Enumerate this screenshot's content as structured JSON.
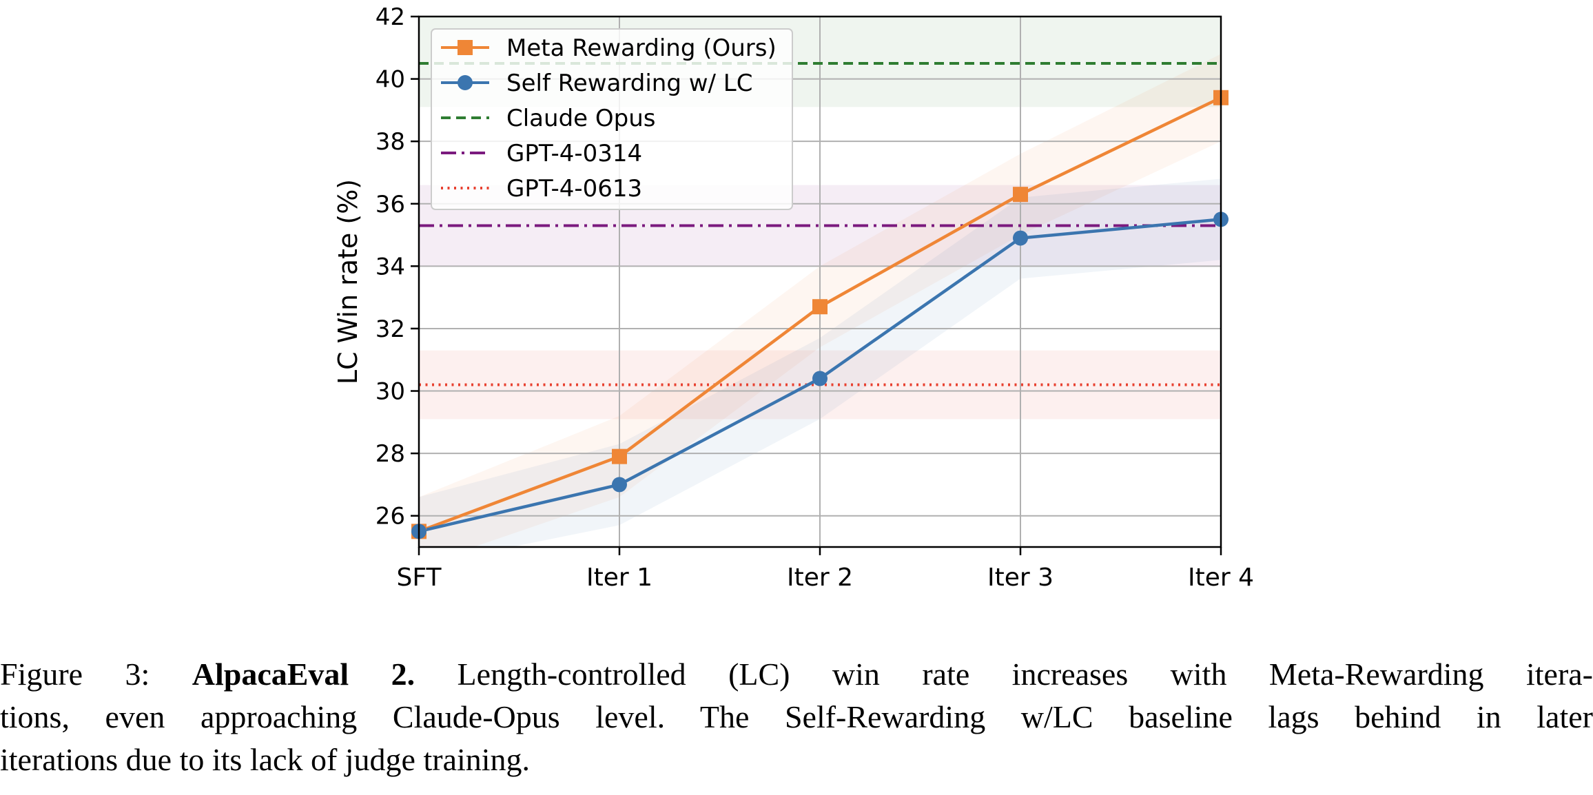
{
  "chart_data": {
    "type": "line",
    "categories": [
      "SFT",
      "Iter 1",
      "Iter 2",
      "Iter 3",
      "Iter 4"
    ],
    "ylabel": "LC Win rate (%)",
    "xlabel": "",
    "ylim": [
      25,
      42
    ],
    "yticks": [
      26,
      28,
      30,
      32,
      34,
      36,
      38,
      40,
      42
    ],
    "grid": true,
    "legend_position": "top-left",
    "series": [
      {
        "name": "Meta Rewarding (Ours)",
        "values": [
          25.5,
          27.9,
          32.7,
          36.3,
          39.4
        ],
        "band_low": [
          24.4,
          26.6,
          31.4,
          35.0,
          38.0
        ],
        "band_high": [
          26.6,
          29.2,
          34.0,
          37.6,
          40.8
        ],
        "color": "#ef8636",
        "marker": "square"
      },
      {
        "name": "Self Rewarding w/ LC",
        "values": [
          25.5,
          27.0,
          30.4,
          34.9,
          35.5
        ],
        "band_low": [
          24.4,
          25.7,
          29.1,
          33.6,
          34.2
        ],
        "band_high": [
          26.6,
          28.3,
          31.7,
          36.2,
          36.8
        ],
        "color": "#3b75af",
        "marker": "circle"
      }
    ],
    "reference_lines": [
      {
        "name": "Claude Opus",
        "value": 40.5,
        "band": [
          39.1,
          42.0
        ],
        "color": "#2f7d32",
        "style": "dashed"
      },
      {
        "name": "GPT-4-0314",
        "value": 35.3,
        "band": [
          34.0,
          36.6
        ],
        "color": "#7b1a7e",
        "style": "dashdot"
      },
      {
        "name": "GPT-4-0613",
        "value": 30.2,
        "band": [
          29.1,
          31.3
        ],
        "color": "#e8402f",
        "style": "dotted"
      }
    ]
  },
  "caption": {
    "label": "Figure 3:",
    "bold": "AlpacaEval 2.",
    "line1_rest": "Length-controlled (LC) win rate increases with Meta-Rewarding itera-",
    "line2": "tions, even approaching Claude-Opus level. The Self-Rewarding w/LC baseline lags behind in later",
    "line3": "iterations due to its lack of judge training."
  }
}
